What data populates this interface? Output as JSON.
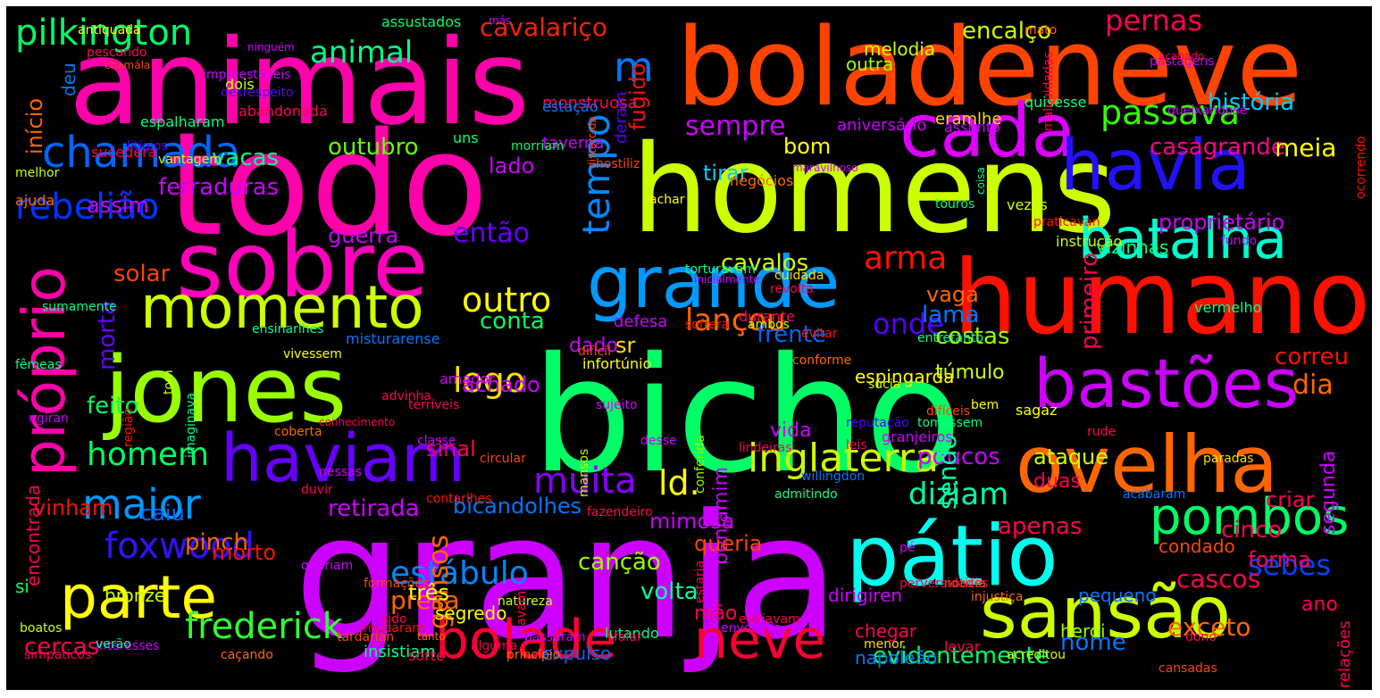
{
  "canvas": {
    "background": "#000000"
  },
  "words": [
    {
      "text": "granja",
      "color": "#cc00ff"
    },
    {
      "text": "bicho",
      "color": "#00ff66"
    },
    {
      "text": "todo",
      "color": "#ff00aa"
    },
    {
      "text": "homens",
      "color": "#ccff00"
    },
    {
      "text": "animais",
      "color": "#ff00aa"
    },
    {
      "text": "boladeneve",
      "color": "#ff4400"
    },
    {
      "text": "humano",
      "color": "#ff1100"
    },
    {
      "text": "jones",
      "color": "#99ff00"
    },
    {
      "text": "sobre",
      "color": "#ff00bb"
    },
    {
      "text": "pátio",
      "color": "#00ffee"
    },
    {
      "text": "ovelha",
      "color": "#ff6600"
    },
    {
      "text": "grande",
      "color": "#0099ff"
    },
    {
      "text": "cada",
      "color": "#dd00ff"
    },
    {
      "text": "havia",
      "color": "#2211ff"
    },
    {
      "text": "haviam",
      "color": "#6600ff"
    },
    {
      "text": "sansão",
      "color": "#ccff00"
    },
    {
      "text": "momento",
      "color": "#ccff00"
    },
    {
      "text": "bastões",
      "color": "#cc00ff"
    },
    {
      "text": "batalha",
      "color": "#00ffcc"
    },
    {
      "text": "parte",
      "color": "#ffff00"
    },
    {
      "text": "bolade",
      "color": "#ff0033"
    },
    {
      "text": "neve",
      "color": "#ff0033"
    },
    {
      "text": "próprio",
      "color": "#ff00aa"
    },
    {
      "text": "inglaterra",
      "color": "#ccff00"
    },
    {
      "text": "pombos",
      "color": "#00ff66"
    },
    {
      "text": "chamada",
      "color": "#0066ff"
    },
    {
      "text": "rebelião",
      "color": "#0033ff"
    },
    {
      "text": "passava",
      "color": "#33ff00"
    },
    {
      "text": "foxwood",
      "color": "#3311ff"
    },
    {
      "text": "maior",
      "color": "#0099ff"
    },
    {
      "text": "frederick",
      "color": "#33ff33"
    },
    {
      "text": "muita",
      "color": "#8800ff"
    },
    {
      "text": "diziam",
      "color": "#00ffaa"
    },
    {
      "text": "sebes",
      "color": "#0044ff"
    },
    {
      "text": "estábulo",
      "color": "#0088ff"
    },
    {
      "text": "pilkington",
      "color": "#00ff66"
    },
    {
      "text": "animal",
      "color": "#00ff88"
    },
    {
      "text": "cavalariço",
      "color": "#ff2200"
    },
    {
      "text": "pernas",
      "color": "#ff0055"
    },
    {
      "text": "logo",
      "color": "#ffdd00"
    },
    {
      "text": "outro",
      "color": "#ffff00"
    },
    {
      "text": "tempo",
      "color": "#0088ff"
    },
    {
      "text": "homem",
      "color": "#00ff66"
    },
    {
      "text": "arma",
      "color": "#ff1100"
    },
    {
      "text": "lançou",
      "color": "#ff6600"
    },
    {
      "text": "gansos",
      "color": "#ff6600"
    },
    {
      "text": "sempre",
      "color": "#cc00ff"
    },
    {
      "text": "onde",
      "color": "#5500ff"
    },
    {
      "text": "ld.",
      "color": "#ffff00"
    },
    {
      "text": "m",
      "color": "#0077ff"
    },
    {
      "text": "história",
      "color": "#00ccff"
    },
    {
      "text": "encalço",
      "color": "#ccff00"
    },
    {
      "text": "melodia",
      "color": "#ccff00"
    },
    {
      "text": "casagrande",
      "color": "#ff0088"
    },
    {
      "text": "proprietário",
      "color": "#cc00ff"
    },
    {
      "text": "primeiro",
      "color": "#ff0055"
    },
    {
      "text": "meia",
      "color": "#ffff00"
    },
    {
      "text": "cavalos",
      "color": "#ccff00"
    },
    {
      "text": "conta",
      "color": "#00ff66"
    },
    {
      "text": "ferraduras",
      "color": "#cc00ff"
    },
    {
      "text": "vacas",
      "color": "#00ff88"
    },
    {
      "text": "outubro",
      "color": "#66ff00"
    },
    {
      "text": "assim",
      "color": "#cc00ff"
    },
    {
      "text": "então",
      "color": "#6600ff"
    },
    {
      "text": "achado",
      "color": "#cc00ff"
    },
    {
      "text": "morta",
      "color": "#6600ff"
    },
    {
      "text": "guerra",
      "color": "#cc00ff"
    },
    {
      "text": "solar",
      "color": "#ff4400"
    },
    {
      "text": "feito",
      "color": "#00ff66"
    },
    {
      "text": "vinham",
      "color": "#ff1100"
    },
    {
      "text": "pinch",
      "color": "#ff6600"
    },
    {
      "text": "caiu",
      "color": "#0066ff"
    },
    {
      "text": "morto",
      "color": "#ff1100"
    },
    {
      "text": "retirada",
      "color": "#cc00ff"
    },
    {
      "text": "bicandolhes",
      "color": "#0077ff"
    },
    {
      "text": "canção",
      "color": "#99ff00"
    },
    {
      "text": "benjamim",
      "color": "#cc00ff"
    },
    {
      "text": "presa",
      "color": "#ff6600"
    },
    {
      "text": "cercas",
      "color": "#ff0055"
    },
    {
      "text": "bronze",
      "color": "#ccff00"
    },
    {
      "text": "três",
      "color": "#ffff00"
    },
    {
      "text": "queria",
      "color": "#ff4400"
    },
    {
      "text": "volta",
      "color": "#00ffaa"
    },
    {
      "text": "mão",
      "color": "#ff0055"
    },
    {
      "text": "cascos",
      "color": "#ff0055"
    },
    {
      "text": "cinco",
      "color": "#ff0055"
    },
    {
      "text": "criar",
      "color": "#ff0055"
    },
    {
      "text": "forma",
      "color": "#ff0055"
    },
    {
      "text": "ano",
      "color": "#ff0055"
    },
    {
      "text": "exceto",
      "color": "#ff6600"
    },
    {
      "text": "nome",
      "color": "#0077ff"
    },
    {
      "text": "evidentemente",
      "color": "#00ff66"
    },
    {
      "text": "apenas",
      "color": "#ff0055"
    },
    {
      "text": "ataque",
      "color": "#ccff00"
    },
    {
      "text": "poucos",
      "color": "#cc00ff"
    },
    {
      "text": "sendo",
      "color": "#00ffaa"
    },
    {
      "text": "segunda",
      "color": "#cc00ff"
    },
    {
      "text": "dia",
      "color": "#ff6600"
    },
    {
      "text": "correu",
      "color": "#ff1100"
    },
    {
      "text": "costas",
      "color": "#99ff00"
    },
    {
      "text": "lama",
      "color": "#0077ff"
    },
    {
      "text": "vaga",
      "color": "#ff6600"
    },
    {
      "text": "frente",
      "color": "#0066ff"
    },
    {
      "text": "dado",
      "color": "#cc00ff"
    },
    {
      "text": "sr",
      "color": "#ffdd00"
    },
    {
      "text": "vida",
      "color": "#cc00ff"
    },
    {
      "text": "mimosa",
      "color": "#cc00ff"
    },
    {
      "text": "sinal",
      "color": "#ff0055"
    },
    {
      "text": "tirar",
      "color": "#00ccff"
    },
    {
      "text": "bom",
      "color": "#ffff00"
    },
    {
      "text": "lado",
      "color": "#cc00ff"
    },
    {
      "text": "fugido",
      "color": "#ff1100"
    },
    {
      "text": "deram",
      "color": "#5500ff"
    },
    {
      "text": "início",
      "color": "#ff6600"
    },
    {
      "text": "deu",
      "color": "#0077ff"
    },
    {
      "text": "encontrada",
      "color": "#ff0055"
    },
    {
      "text": "si",
      "color": "#00ff66"
    },
    {
      "text": "túmulo",
      "color": "#ccff00"
    },
    {
      "text": "espingarda",
      "color": "#ffff00"
    },
    {
      "text": "vizinhas",
      "color": "#00ff88"
    },
    {
      "text": "aniversário",
      "color": "#cc00ff"
    },
    {
      "text": "outra",
      "color": "#99ff00"
    },
    {
      "text": "monstruosa",
      "color": "#ff0055"
    },
    {
      "text": "taverna",
      "color": "#cc00ff"
    },
    {
      "text": "estação",
      "color": "#0077ff"
    },
    {
      "text": "herói",
      "color": "#99ff00"
    },
    {
      "text": "pequeno",
      "color": "#0077ff"
    },
    {
      "text": "condado",
      "color": "#ff4400"
    },
    {
      "text": "relações",
      "color": "#ff0055"
    },
    {
      "text": "duas",
      "color": "#ff0055"
    },
    {
      "text": "napoleão",
      "color": "#0077ff"
    },
    {
      "text": "chegar",
      "color": "#ff0055"
    },
    {
      "text": "dirigiren",
      "color": "#cc00ff"
    },
    {
      "text": "expulso",
      "color": "#0066ff"
    },
    {
      "text": "insistiam",
      "color": "#00ff88"
    },
    {
      "text": "segredo",
      "color": "#ffff00"
    },
    {
      "text": "ajuda",
      "color": "#ff6600"
    },
    {
      "text": "melhor",
      "color": "#ccff00"
    },
    {
      "text": "vantagem",
      "color": "#ccff00"
    },
    {
      "text": "sucedera",
      "color": "#ff0055"
    },
    {
      "text": "espalharam",
      "color": "#00ff88"
    },
    {
      "text": "abandonada",
      "color": "#ff0055"
    },
    {
      "text": "dois",
      "color": "#ccff00"
    },
    {
      "text": "uns",
      "color": "#00ff88"
    },
    {
      "text": "morriam",
      "color": "#00ff66"
    },
    {
      "text": "achar",
      "color": "#ffff00"
    },
    {
      "text": "revolta",
      "color": "#ff0055"
    },
    {
      "text": "cuidada",
      "color": "#ffdd00"
    },
    {
      "text": "torturavam",
      "color": "#00ff88"
    },
    {
      "text": "negócios",
      "color": "#ff6600"
    },
    {
      "text": "quisesse",
      "color": "#00ff88"
    },
    {
      "text": "eramlhe",
      "color": "#ffdd00"
    },
    {
      "text": "assunto",
      "color": "#cc00ff"
    },
    {
      "text": "vezes",
      "color": "#ccff00"
    },
    {
      "text": "vermelho",
      "color": "#00ff88"
    },
    {
      "text": "fundo",
      "color": "#cc00ff"
    },
    {
      "text": "instrução",
      "color": "#ccff00"
    },
    {
      "text": "entretanto",
      "color": "#00ff88"
    },
    {
      "text": "durante",
      "color": "#ff0055"
    },
    {
      "text": "conforme",
      "color": "#ff6600"
    },
    {
      "text": "evitar",
      "color": "#ff1100"
    },
    {
      "text": "ambos",
      "color": "#ccff00"
    },
    {
      "text": "sofrera",
      "color": "#ff1100"
    },
    {
      "text": "defesa",
      "color": "#cc00ff"
    },
    {
      "text": "difícil",
      "color": "#ff4400"
    },
    {
      "text": "infortúnio",
      "color": "#ffff00"
    },
    {
      "text": "classe",
      "color": "#cc00ff"
    },
    {
      "text": "misturarense",
      "color": "#0077ff"
    },
    {
      "text": "amador",
      "color": "#cc00ff"
    },
    {
      "text": "ensinarlhes",
      "color": "#00ff88"
    },
    {
      "text": "vivessem",
      "color": "#ffff00"
    },
    {
      "text": "sujeito",
      "color": "#cc00ff"
    },
    {
      "text": "reputação",
      "color": "#5500ff"
    },
    {
      "text": "súcia",
      "color": "#ccff00"
    },
    {
      "text": "conferida",
      "color": "#99ff00"
    },
    {
      "text": "contarlhes",
      "color": "#ff1100"
    },
    {
      "text": "terríveis",
      "color": "#ff0055"
    },
    {
      "text": "leis",
      "color": "#ff0055"
    },
    {
      "text": "lindeiras",
      "color": "#ff0055"
    },
    {
      "text": "bem",
      "color": "#ffff00"
    },
    {
      "text": "sagaz",
      "color": "#ffff00"
    },
    {
      "text": "difíceis",
      "color": "#ff4400"
    },
    {
      "text": "granjeiros",
      "color": "#cc00ff"
    },
    {
      "text": "rude",
      "color": "#ff0055"
    },
    {
      "text": "acabaram",
      "color": "#0077ff"
    },
    {
      "text": "paradas",
      "color": "#ffdd00"
    },
    {
      "text": "dono",
      "color": "#ff0055"
    },
    {
      "text": "levar",
      "color": "#ff0055"
    },
    {
      "text": "cansadas",
      "color": "#ff4400"
    },
    {
      "text": "passaram",
      "color": "#cc00ff"
    },
    {
      "text": "natureza",
      "color": "#ccff00"
    },
    {
      "text": "caçando",
      "color": "#ff6600"
    },
    {
      "text": "mudaram",
      "color": "#ff1100"
    },
    {
      "text": "sorte",
      "color": "#ff0055"
    },
    {
      "text": "alguma",
      "color": "#ff0055"
    },
    {
      "text": "formações",
      "color": "#ff4400"
    },
    {
      "text": "tanto",
      "color": "#ff6600"
    },
    {
      "text": "interesses",
      "color": "#cc00ff"
    },
    {
      "text": "simpáticos",
      "color": "#ff0055"
    },
    {
      "text": "boatos",
      "color": "#ccff00"
    },
    {
      "text": "verão",
      "color": "#00ff88"
    },
    {
      "text": "circular",
      "color": "#ff4400"
    },
    {
      "text": "lutando",
      "color": "#00ff88"
    },
    {
      "text": "falar",
      "color": "#ff0055"
    },
    {
      "text": "envolvido",
      "color": "#cc00ff"
    },
    {
      "text": "princípio",
      "color": "#ff6600"
    },
    {
      "text": "injustiça",
      "color": "#ff6600"
    },
    {
      "text": "menor",
      "color": "#ffdd00"
    },
    {
      "text": "admitindo",
      "color": "#00ff88"
    },
    {
      "text": "tomassem",
      "color": "#00ff88"
    },
    {
      "text": "assustados",
      "color": "#00ff66"
    },
    {
      "text": "más",
      "color": "#cc00ff"
    },
    {
      "text": "antiquada",
      "color": "#ffff00"
    },
    {
      "text": "pescando",
      "color": "#ff0055"
    },
    {
      "text": "chamála",
      "color": "#ff4400"
    },
    {
      "text": "ninguém",
      "color": "#cc00ff"
    },
    {
      "text": "impreestáveis",
      "color": "#cc00ff"
    },
    {
      "text": "desrespeito",
      "color": "#5500ff"
    },
    {
      "text": "litígios",
      "color": "#5500ff"
    },
    {
      "text": "hostiliz",
      "color": "#ff4400"
    },
    {
      "text": "distorcida",
      "color": "#ff4400"
    },
    {
      "text": "maravilhoso",
      "color": "#cc00ff"
    },
    {
      "text": "touros",
      "color": "#00ff88"
    },
    {
      "text": "coisa",
      "color": "#00ff88"
    },
    {
      "text": "praticavan",
      "color": "#ff1100"
    },
    {
      "text": "malcuidadas",
      "color": "#ff0055"
    },
    {
      "text": "pastagens",
      "color": "#cc00ff"
    },
    {
      "text": "acabado",
      "color": "#ff0055"
    },
    {
      "text": "mato",
      "color": "#ff6600"
    },
    {
      "text": "queixandose",
      "color": "#cc00ff"
    },
    {
      "text": "ocorrendo",
      "color": "#ff1100"
    },
    {
      "text": "inicialmente",
      "color": "#cc00ff"
    },
    {
      "text": "sumamente",
      "color": "#00ff88"
    },
    {
      "text": "fêmeas",
      "color": "#00ff88"
    },
    {
      "text": "tom",
      "color": "#ccff00"
    },
    {
      "text": "imaginava",
      "color": "#00ff88"
    },
    {
      "text": "região",
      "color": "#ff1100"
    },
    {
      "text": "nessas",
      "color": "#cc00ff"
    },
    {
      "text": "duvir",
      "color": "#ff0055"
    },
    {
      "text": "ngiran",
      "color": "#cc00ff"
    },
    {
      "text": "coberta",
      "color": "#ff6600"
    },
    {
      "text": "advinha",
      "color": "#ff0055"
    },
    {
      "text": "conhecimento",
      "color": "#ff0055"
    },
    {
      "text": "queriam",
      "color": "#cc00ff"
    },
    {
      "text": "tardarian",
      "color": "#ff4400"
    },
    {
      "text": "enviavam",
      "color": "#ff0055"
    },
    {
      "text": "fazendeiro",
      "color": "#ff0055"
    },
    {
      "text": "willingdon",
      "color": "#0077ff"
    },
    {
      "text": "estaria",
      "color": "#ff0055"
    },
    {
      "text": "perversidades",
      "color": "#ff0055"
    },
    {
      "text": "pé",
      "color": "#cc00ff"
    },
    {
      "text": "desse",
      "color": "#cc00ff"
    },
    {
      "text": "mansos",
      "color": "#ccff00"
    },
    {
      "text": "avam",
      "color": "#ff0055"
    },
    {
      "text": "sido",
      "color": "#ff0055"
    },
    {
      "text": "acreditou",
      "color": "#ccff00"
    },
    {
      "text": "notícia",
      "color": "#ff4400"
    }
  ]
}
